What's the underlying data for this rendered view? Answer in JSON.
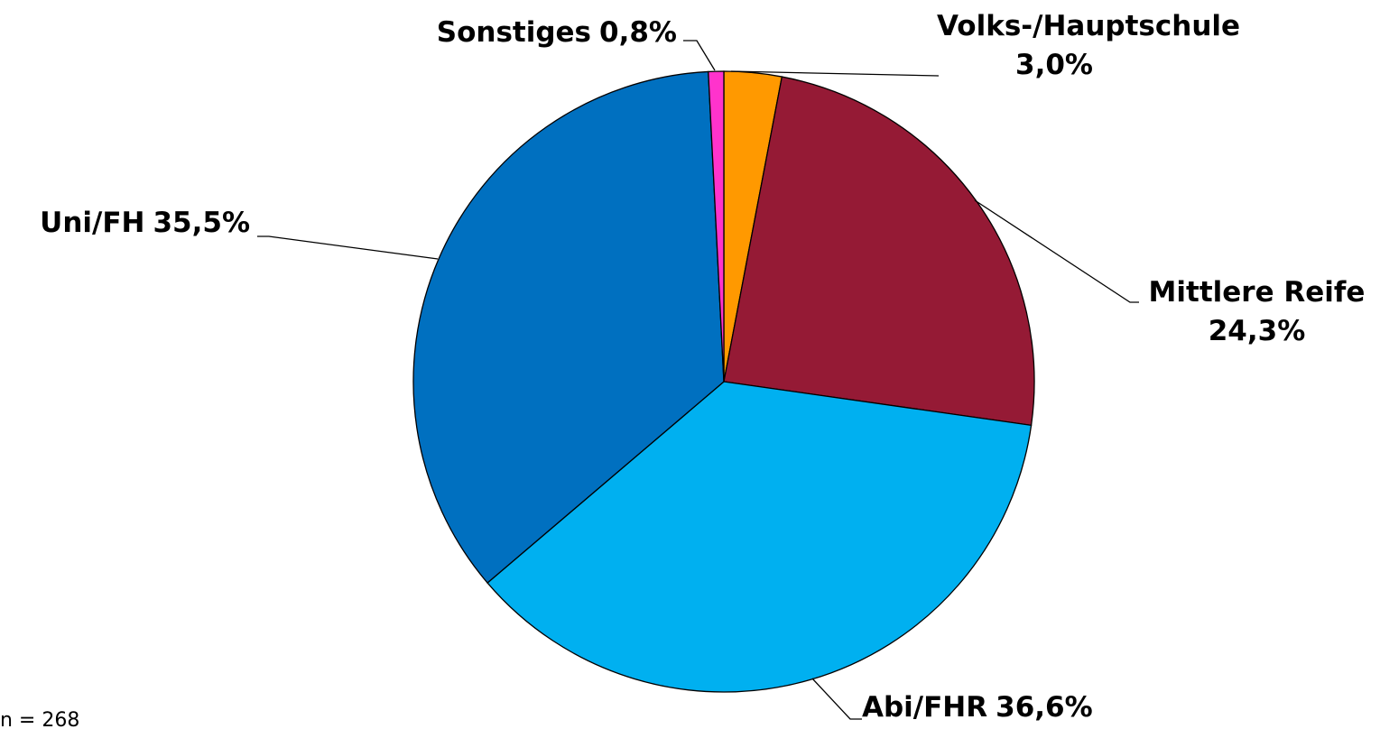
{
  "chart_data": {
    "type": "pie",
    "categories": [
      "Volks-/Hauptschule",
      "Mittlere Reife",
      "Abi/FHR",
      "Uni/FH",
      "Sonstiges"
    ],
    "values": [
      3.0,
      24.3,
      36.6,
      35.5,
      0.8
    ],
    "value_labels": [
      "3,0%",
      "24,3%",
      "36,6%",
      "35,5%",
      "0,8%"
    ],
    "colors": [
      "#FF9900",
      "#951A35",
      "#00B0F0",
      "#0070C0",
      "#FF33CC"
    ],
    "note": "n = 268"
  }
}
